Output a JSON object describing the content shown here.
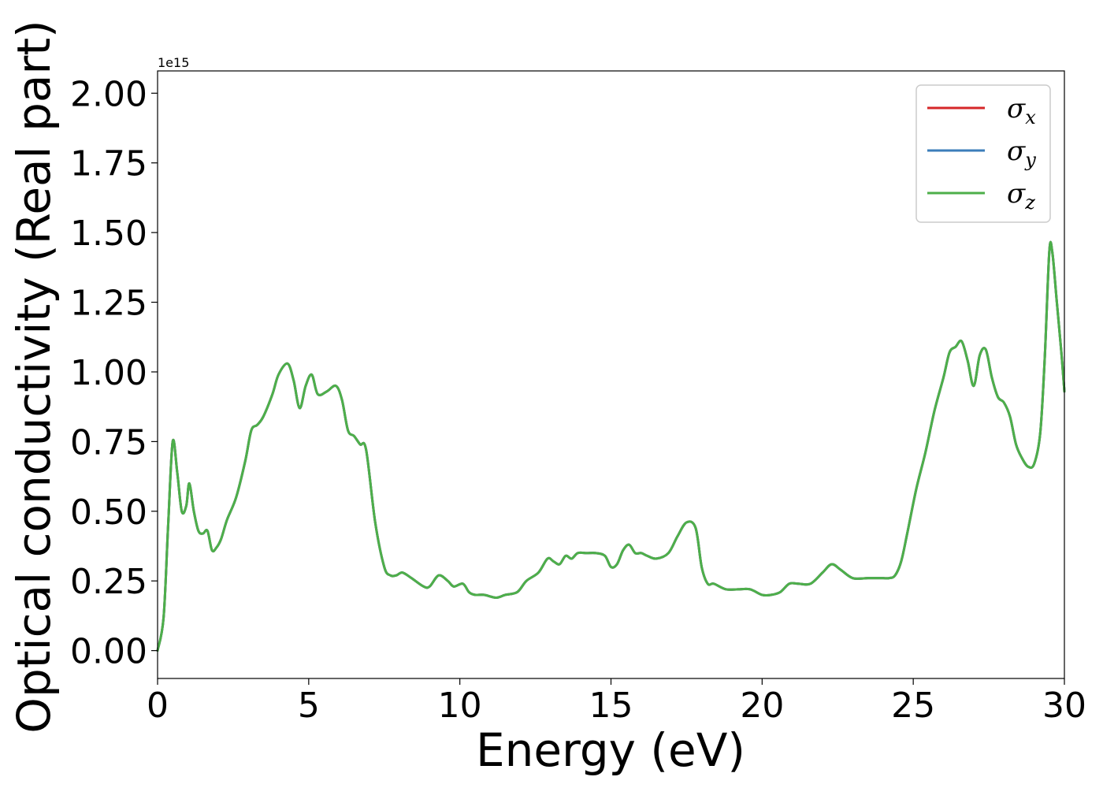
{
  "chart_data": {
    "type": "line",
    "xlabel": "Energy (eV)",
    "ylabel": "Optical conductivity (Real part)",
    "y_offset_label": "1e15",
    "xlim": [
      0,
      30
    ],
    "ylim": [
      -0.1,
      2.08
    ],
    "x_ticks": [
      0,
      5,
      10,
      15,
      20,
      25,
      30
    ],
    "x_tick_labels": [
      "0",
      "5",
      "10",
      "15",
      "20",
      "25",
      "30"
    ],
    "y_ticks": [
      0,
      0.25,
      0.5,
      0.75,
      1.0,
      1.25,
      1.5,
      1.75,
      2.0
    ],
    "y_tick_labels": [
      "0.00",
      "0.25",
      "0.50",
      "0.75",
      "1.00",
      "1.25",
      "1.50",
      "1.75",
      "2.00"
    ],
    "grid": false,
    "legend_position": "top-right",
    "legend": [
      {
        "symbol": "σ",
        "sub": "x",
        "color": "#d62728"
      },
      {
        "symbol": "σ",
        "sub": "y",
        "color": "#3b7dba"
      },
      {
        "symbol": "σ",
        "sub": "z",
        "color": "#4daf4a"
      }
    ],
    "x": [
      0,
      0.2,
      0.35,
      0.5,
      0.65,
      0.8,
      0.95,
      1.05,
      1.2,
      1.35,
      1.5,
      1.65,
      1.8,
      1.95,
      2.1,
      2.3,
      2.6,
      2.9,
      3.1,
      3.3,
      3.5,
      3.8,
      4.0,
      4.3,
      4.5,
      4.7,
      4.9,
      5.1,
      5.3,
      5.6,
      5.9,
      6.1,
      6.3,
      6.5,
      6.7,
      6.9,
      7.2,
      7.5,
      7.7,
      7.9,
      8.1,
      8.4,
      8.8,
      9.0,
      9.3,
      9.6,
      9.8,
      10.1,
      10.3,
      10.5,
      10.8,
      11.2,
      11.5,
      11.9,
      12.2,
      12.6,
      12.9,
      13.1,
      13.3,
      13.5,
      13.7,
      13.9,
      14.2,
      14.5,
      14.8,
      15.0,
      15.2,
      15.4,
      15.6,
      15.8,
      16.0,
      16.2,
      16.5,
      16.9,
      17.2,
      17.5,
      17.8,
      18.0,
      18.2,
      18.4,
      18.8,
      19.2,
      19.6,
      20.0,
      20.3,
      20.6,
      20.9,
      21.2,
      21.6,
      22.0,
      22.3,
      22.6,
      23.0,
      23.5,
      23.8,
      24.0,
      24.2,
      24.4,
      24.6,
      24.8,
      25.1,
      25.4,
      25.7,
      26.0,
      26.2,
      26.4,
      26.6,
      26.8,
      27.0,
      27.2,
      27.4,
      27.6,
      27.8,
      28.0,
      28.2,
      28.4,
      28.6,
      28.8,
      29.0,
      29.2,
      29.35,
      29.5,
      29.6,
      29.75,
      29.9,
      30.0
    ],
    "series": [
      {
        "name": "σx",
        "color": "#d62728",
        "values": [
          0.0,
          0.12,
          0.45,
          0.75,
          0.64,
          0.5,
          0.52,
          0.6,
          0.5,
          0.43,
          0.42,
          0.43,
          0.36,
          0.37,
          0.4,
          0.47,
          0.55,
          0.68,
          0.79,
          0.81,
          0.84,
          0.92,
          0.99,
          1.03,
          0.97,
          0.87,
          0.95,
          0.99,
          0.92,
          0.93,
          0.95,
          0.9,
          0.79,
          0.77,
          0.74,
          0.72,
          0.46,
          0.3,
          0.27,
          0.27,
          0.28,
          0.26,
          0.23,
          0.23,
          0.27,
          0.25,
          0.23,
          0.24,
          0.21,
          0.2,
          0.2,
          0.19,
          0.2,
          0.21,
          0.25,
          0.28,
          0.33,
          0.32,
          0.31,
          0.34,
          0.33,
          0.35,
          0.35,
          0.35,
          0.34,
          0.3,
          0.31,
          0.36,
          0.38,
          0.35,
          0.35,
          0.34,
          0.33,
          0.35,
          0.41,
          0.46,
          0.44,
          0.3,
          0.24,
          0.24,
          0.22,
          0.22,
          0.22,
          0.2,
          0.2,
          0.21,
          0.24,
          0.24,
          0.24,
          0.28,
          0.31,
          0.29,
          0.26,
          0.26,
          0.26,
          0.26,
          0.26,
          0.27,
          0.32,
          0.42,
          0.58,
          0.71,
          0.86,
          0.98,
          1.07,
          1.09,
          1.11,
          1.04,
          0.95,
          1.06,
          1.08,
          0.98,
          0.91,
          0.89,
          0.84,
          0.74,
          0.69,
          0.66,
          0.67,
          0.78,
          1.05,
          1.43,
          1.43,
          1.25,
          1.07,
          0.93
        ]
      },
      {
        "name": "σy",
        "color": "#3b7dba",
        "values": [
          0.0,
          0.12,
          0.45,
          0.75,
          0.64,
          0.5,
          0.52,
          0.6,
          0.5,
          0.43,
          0.42,
          0.43,
          0.36,
          0.37,
          0.4,
          0.47,
          0.55,
          0.68,
          0.79,
          0.81,
          0.84,
          0.92,
          0.99,
          1.03,
          0.97,
          0.87,
          0.95,
          0.99,
          0.92,
          0.93,
          0.95,
          0.9,
          0.79,
          0.77,
          0.74,
          0.72,
          0.46,
          0.3,
          0.27,
          0.27,
          0.28,
          0.26,
          0.23,
          0.23,
          0.27,
          0.25,
          0.23,
          0.24,
          0.21,
          0.2,
          0.2,
          0.19,
          0.2,
          0.21,
          0.25,
          0.28,
          0.33,
          0.32,
          0.31,
          0.34,
          0.33,
          0.35,
          0.35,
          0.35,
          0.34,
          0.3,
          0.31,
          0.36,
          0.38,
          0.35,
          0.35,
          0.34,
          0.33,
          0.35,
          0.41,
          0.46,
          0.44,
          0.3,
          0.24,
          0.24,
          0.22,
          0.22,
          0.22,
          0.2,
          0.2,
          0.21,
          0.24,
          0.24,
          0.24,
          0.28,
          0.31,
          0.29,
          0.26,
          0.26,
          0.26,
          0.26,
          0.26,
          0.27,
          0.32,
          0.42,
          0.58,
          0.71,
          0.86,
          0.98,
          1.07,
          1.09,
          1.11,
          1.04,
          0.95,
          1.06,
          1.08,
          0.98,
          0.91,
          0.89,
          0.84,
          0.74,
          0.69,
          0.66,
          0.67,
          0.78,
          1.05,
          1.43,
          1.43,
          1.25,
          1.07,
          0.93
        ]
      },
      {
        "name": "σz",
        "color": "#4daf4a",
        "values": [
          0.0,
          0.12,
          0.45,
          0.75,
          0.64,
          0.5,
          0.52,
          0.6,
          0.5,
          0.43,
          0.42,
          0.43,
          0.36,
          0.37,
          0.4,
          0.47,
          0.55,
          0.68,
          0.79,
          0.81,
          0.84,
          0.92,
          0.99,
          1.03,
          0.97,
          0.87,
          0.95,
          0.99,
          0.92,
          0.93,
          0.95,
          0.9,
          0.79,
          0.77,
          0.74,
          0.72,
          0.46,
          0.3,
          0.27,
          0.27,
          0.28,
          0.26,
          0.23,
          0.23,
          0.27,
          0.25,
          0.23,
          0.24,
          0.21,
          0.2,
          0.2,
          0.19,
          0.2,
          0.21,
          0.25,
          0.28,
          0.33,
          0.32,
          0.31,
          0.34,
          0.33,
          0.35,
          0.35,
          0.35,
          0.34,
          0.3,
          0.31,
          0.36,
          0.38,
          0.35,
          0.35,
          0.34,
          0.33,
          0.35,
          0.41,
          0.46,
          0.44,
          0.3,
          0.24,
          0.24,
          0.22,
          0.22,
          0.22,
          0.2,
          0.2,
          0.21,
          0.24,
          0.24,
          0.24,
          0.28,
          0.31,
          0.29,
          0.26,
          0.26,
          0.26,
          0.26,
          0.26,
          0.27,
          0.32,
          0.42,
          0.58,
          0.71,
          0.86,
          0.98,
          1.07,
          1.09,
          1.11,
          1.04,
          0.95,
          1.06,
          1.08,
          0.98,
          0.91,
          0.89,
          0.84,
          0.74,
          0.69,
          0.66,
          0.67,
          0.78,
          1.05,
          1.43,
          1.43,
          1.25,
          1.07,
          0.93
        ]
      }
    ]
  }
}
